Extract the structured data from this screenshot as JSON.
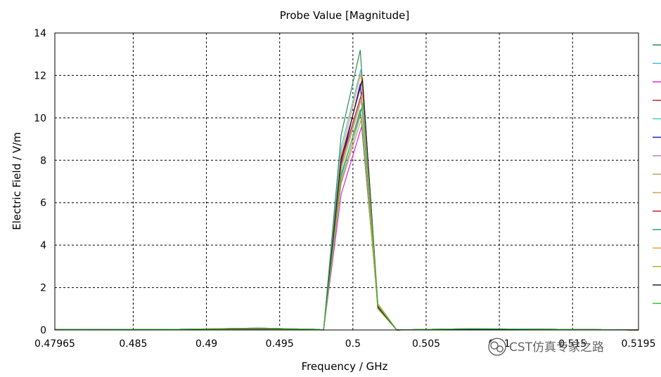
{
  "chart_data": {
    "type": "line",
    "title": "Probe Value [Magnitude]",
    "xlabel": "Frequency / GHz",
    "ylabel": "Electric Field / V/m",
    "xlim": [
      0.47965,
      0.5195
    ],
    "ylim": [
      0,
      14
    ],
    "xticks": [
      0.47965,
      0.485,
      0.49,
      0.495,
      0.5,
      0.505,
      0.51,
      0.515,
      0.5195
    ],
    "xtick_labels": [
      "0.47965",
      "0.485",
      "0.49",
      "0.495",
      "0.5",
      "0.505",
      "0.51",
      "0.515",
      "0.5195"
    ],
    "yticks": [
      0,
      2,
      4,
      6,
      8,
      10,
      12,
      14
    ],
    "ytick_labels": [
      "0",
      "2",
      "4",
      "6",
      "8",
      "10",
      "12",
      "14"
    ],
    "grid": true,
    "legend": "right",
    "series": [
      {
        "color": "#2e8b57",
        "peak": 13.2,
        "rise": 9.2
      },
      {
        "color": "#40c0e0",
        "peak": 12.3,
        "rise": 8.6
      },
      {
        "color": "#e020e0",
        "peak": 9.6,
        "rise": 6.4
      },
      {
        "color": "#b03030",
        "peak": 11.9,
        "rise": 8.0
      },
      {
        "color": "#40d0d0",
        "peak": 10.6,
        "rise": 7.4
      },
      {
        "color": "#2020c0",
        "peak": 11.6,
        "rise": 7.8
      },
      {
        "color": "#c080c0",
        "peak": 10.2,
        "rise": 7.0
      },
      {
        "color": "#c0a070",
        "peak": 10.9,
        "rise": 7.6
      },
      {
        "color": "#d0a060",
        "peak": 11.2,
        "rise": 7.7
      },
      {
        "color": "#c02040",
        "peak": 11.4,
        "rise": 7.9
      },
      {
        "color": "#30a070",
        "peak": 10.4,
        "rise": 7.2
      },
      {
        "color": "#f0a040",
        "peak": 12.1,
        "rise": 8.3
      },
      {
        "color": "#b0b030",
        "peak": 10.0,
        "rise": 6.9
      },
      {
        "color": "#202040",
        "peak": 11.8,
        "rise": 8.1
      },
      {
        "color": "#40c040",
        "peak": 10.7,
        "rise": 7.3
      }
    ]
  },
  "watermark": {
    "text": "CST仿真专家之路",
    "icon": "wechat-icon"
  }
}
